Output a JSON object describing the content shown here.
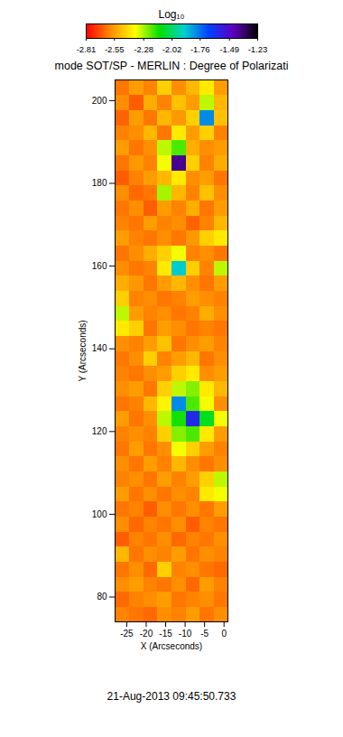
{
  "chart_data": {
    "type": "heatmap",
    "title": "mode SOT/SP - MERLIN : Degree of Polarizati",
    "xlabel": "X (Arcseconds)",
    "ylabel": "Y (Arcseconds)",
    "xlim": [
      -28,
      1
    ],
    "ylim": [
      74,
      205
    ],
    "xticks": [
      -25,
      -20,
      -15,
      -10,
      -5,
      0
    ],
    "yticks": [
      80,
      100,
      120,
      140,
      160,
      180,
      200
    ],
    "caption": "21-Aug-2013 09:45:50.733",
    "colorbar": {
      "label": "Log₁₀",
      "range": [
        -2.81,
        -1.23
      ],
      "ticks": [
        -2.81,
        -2.55,
        -2.28,
        -2.02,
        -1.76,
        -1.49,
        -1.23
      ]
    },
    "cells": [
      [
        -2.62,
        -2.55,
        -2.6,
        -2.45,
        -2.58,
        -2.5,
        -2.4,
        -2.55
      ],
      [
        -2.58,
        -2.66,
        -2.52,
        -2.6,
        -2.48,
        -2.55,
        -2.3,
        -2.5
      ],
      [
        -2.65,
        -2.55,
        -2.62,
        -2.5,
        -2.56,
        -2.45,
        -1.8,
        -2.48
      ],
      [
        -2.6,
        -2.58,
        -2.5,
        -2.62,
        -2.4,
        -2.55,
        -2.45,
        -2.6
      ],
      [
        -2.55,
        -2.62,
        -2.58,
        -2.3,
        -2.2,
        -2.52,
        -2.58,
        -2.55
      ],
      [
        -2.62,
        -2.56,
        -2.6,
        -2.35,
        -1.4,
        -2.45,
        -2.6,
        -2.52
      ],
      [
        -2.66,
        -2.6,
        -2.55,
        -2.5,
        -2.4,
        -2.58,
        -2.55,
        -2.62
      ],
      [
        -2.58,
        -2.64,
        -2.62,
        -2.28,
        -2.5,
        -2.6,
        -2.48,
        -2.58
      ],
      [
        -2.62,
        -2.58,
        -2.66,
        -2.55,
        -2.6,
        -2.52,
        -2.62,
        -2.55
      ],
      [
        -2.6,
        -2.62,
        -2.55,
        -2.6,
        -2.58,
        -2.65,
        -2.6,
        -2.5
      ],
      [
        -2.55,
        -2.6,
        -2.62,
        -2.58,
        -2.62,
        -2.56,
        -2.45,
        -2.4
      ],
      [
        -2.62,
        -2.58,
        -2.52,
        -2.45,
        -2.35,
        -2.6,
        -2.58,
        -2.62
      ],
      [
        -2.58,
        -2.62,
        -2.6,
        -2.4,
        -1.9,
        -2.45,
        -2.6,
        -2.3
      ],
      [
        -2.52,
        -2.56,
        -2.62,
        -2.55,
        -2.5,
        -2.58,
        -2.62,
        -2.55
      ],
      [
        -2.45,
        -2.6,
        -2.58,
        -2.62,
        -2.6,
        -2.55,
        -2.58,
        -2.6
      ],
      [
        -2.3,
        -2.55,
        -2.6,
        -2.58,
        -2.62,
        -2.6,
        -2.52,
        -2.58
      ],
      [
        -2.4,
        -2.45,
        -2.62,
        -2.55,
        -2.58,
        -2.62,
        -2.6,
        -2.62
      ],
      [
        -2.58,
        -2.6,
        -2.55,
        -2.48,
        -2.62,
        -2.58,
        -2.55,
        -2.6
      ],
      [
        -2.62,
        -2.58,
        -2.45,
        -2.6,
        -2.55,
        -2.5,
        -2.62,
        -2.58
      ],
      [
        -2.6,
        -2.62,
        -2.58,
        -2.55,
        -2.45,
        -2.4,
        -2.58,
        -2.55
      ],
      [
        -2.58,
        -2.55,
        -2.62,
        -2.45,
        -2.3,
        -2.25,
        -2.4,
        -2.5
      ],
      [
        -2.62,
        -2.6,
        -2.5,
        -2.38,
        -1.8,
        -2.2,
        -2.35,
        -2.58
      ],
      [
        -2.55,
        -2.62,
        -2.58,
        -2.3,
        -2.15,
        -1.6,
        -2.1,
        -2.35
      ],
      [
        -2.6,
        -2.58,
        -2.6,
        -2.45,
        -2.25,
        -2.2,
        -2.4,
        -2.55
      ],
      [
        -2.62,
        -2.55,
        -2.62,
        -2.58,
        -2.35,
        -2.45,
        -2.55,
        -2.6
      ],
      [
        -2.58,
        -2.62,
        -2.55,
        -2.6,
        -2.5,
        -2.58,
        -2.62,
        -2.58
      ],
      [
        -2.6,
        -2.58,
        -2.62,
        -2.55,
        -2.6,
        -2.55,
        -2.45,
        -2.3
      ],
      [
        -2.55,
        -2.62,
        -2.58,
        -2.62,
        -2.58,
        -2.6,
        -2.4,
        -2.35
      ],
      [
        -2.62,
        -2.6,
        -2.66,
        -2.58,
        -2.62,
        -2.58,
        -2.62,
        -2.55
      ],
      [
        -2.58,
        -2.64,
        -2.6,
        -2.62,
        -2.58,
        -2.66,
        -2.6,
        -2.62
      ],
      [
        -2.66,
        -2.6,
        -2.62,
        -2.58,
        -2.64,
        -2.6,
        -2.62,
        -2.58
      ],
      [
        -2.5,
        -2.62,
        -2.58,
        -2.6,
        -2.55,
        -2.62,
        -2.58,
        -2.6
      ],
      [
        -2.62,
        -2.58,
        -2.64,
        -2.45,
        -2.6,
        -2.58,
        -2.62,
        -2.64
      ],
      [
        -2.58,
        -2.55,
        -2.6,
        -2.62,
        -2.58,
        -2.64,
        -2.55,
        -2.6
      ],
      [
        -2.64,
        -2.6,
        -2.58,
        -2.55,
        -2.62,
        -2.6,
        -2.58,
        -2.62
      ],
      [
        -2.6,
        -2.62,
        -2.64,
        -2.58,
        -2.6,
        -2.55,
        -2.62,
        -2.58
      ]
    ]
  }
}
